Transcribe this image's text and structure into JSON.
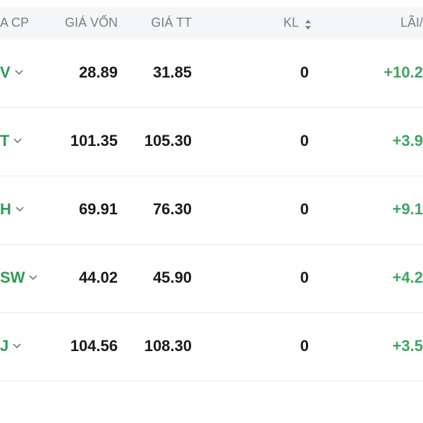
{
  "header": {
    "columns": [
      "A CP",
      "GIÁ VỐN",
      "GIÁ TT",
      "KL",
      "LÃI/"
    ]
  },
  "rows": [
    {
      "ticker": "V",
      "cost": "28.89",
      "price": "31.85",
      "volume": "0",
      "profit": "+10.2"
    },
    {
      "ticker": "T",
      "cost": "101.35",
      "price": "105.30",
      "volume": "0",
      "profit": "+3.9"
    },
    {
      "ticker": "H",
      "cost": "69.91",
      "price": "76.30",
      "volume": "0",
      "profit": "+9.1"
    },
    {
      "ticker": "SW",
      "cost": "44.02",
      "price": "45.90",
      "volume": "0",
      "profit": "+4.2"
    },
    {
      "ticker": "J",
      "cost": "104.56",
      "price": "108.30",
      "volume": "0",
      "profit": "+3.5"
    }
  ]
}
